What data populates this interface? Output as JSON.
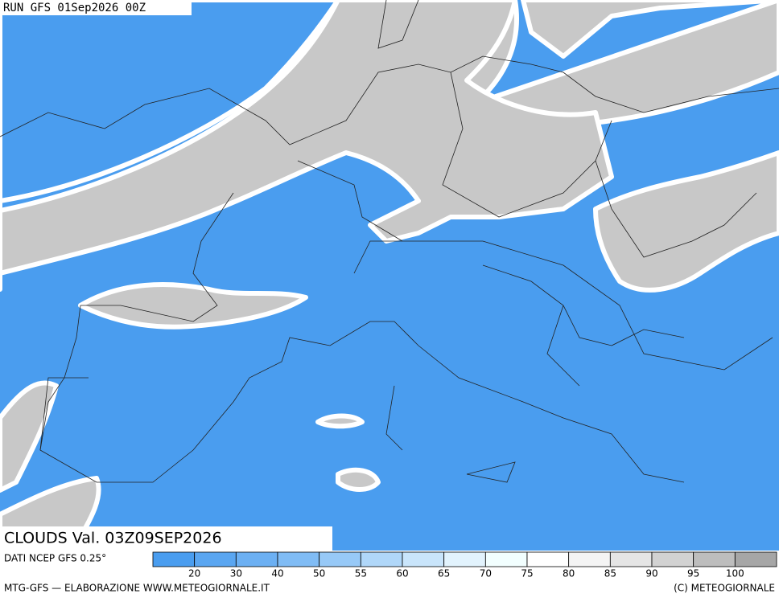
{
  "header": {
    "run": "RUN GFS 01Sep2026 00Z"
  },
  "map": {
    "title": "CLOUDS Val. 03Z09SEP2026"
  },
  "legend": {
    "source": "DATI NCEP GFS 0.25°",
    "colors": [
      "#4a9def",
      "#5aa6f1",
      "#6cb0f3",
      "#80bcf5",
      "#97c9f7",
      "#b0d7f9",
      "#c9e5fb",
      "#e2f3fd",
      "#f2ffff",
      "#ffffff",
      "#f4f4f4",
      "#e5e5e5",
      "#d2d2d2",
      "#bdbdbd",
      "#a6a6a6"
    ],
    "ticks": [
      "20",
      "30",
      "40",
      "50",
      "55",
      "60",
      "65",
      "70",
      "75",
      "80",
      "85",
      "90",
      "95",
      "100"
    ]
  },
  "footer": {
    "credit": "MTG-GFS — ELABORAZIONE WWW.METEOGIORNALE.IT",
    "copyright": "(C) METEOGIORNALE"
  }
}
